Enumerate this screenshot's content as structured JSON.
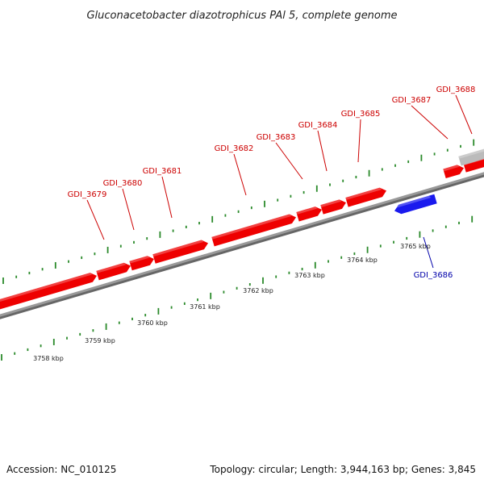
{
  "title": "Gluconacetobacter diazotrophicus PAl 5, complete genome",
  "footer": {
    "accession": "Accession: NC_010125",
    "summary": "Topology: circular; Length: 3,944,163 bp; Genes: 3,845"
  },
  "colors": {
    "forward_gene": "#ee0000",
    "reverse_gene": "#1a1aee",
    "other_gene": "#bbbbbb",
    "forward_label": "#cc0000",
    "reverse_label": "#0000aa",
    "backbone": "#888888",
    "ticks": "#2a8a2a"
  },
  "chart_data": {
    "type": "genome-map",
    "ruler_labels": [
      "3758 kbp",
      "3759 kbp",
      "3760 kbp",
      "3761 kbp",
      "3762 kbp",
      "3763 kbp",
      "3764 kbp",
      "3765 kbp"
    ],
    "genes": [
      {
        "id": "g3679",
        "label": "GDI_3679",
        "strand": "forward"
      },
      {
        "id": "g3680",
        "label": "GDI_3680",
        "strand": "forward"
      },
      {
        "id": "g3681",
        "label": "GDI_3681",
        "strand": "forward"
      },
      {
        "id": "g3682",
        "label": "GDI_3682",
        "strand": "forward"
      },
      {
        "id": "g3683",
        "label": "GDI_3683",
        "strand": "forward"
      },
      {
        "id": "g3684",
        "label": "GDI_3684",
        "strand": "forward"
      },
      {
        "id": "g3685",
        "label": "GDI_3685",
        "strand": "forward"
      },
      {
        "id": "g3686",
        "label": "GDI_3686",
        "strand": "reverse"
      },
      {
        "id": "g3687",
        "label": "GDI_3687",
        "strand": "forward"
      },
      {
        "id": "g3688",
        "label": "GDI_3688",
        "strand": "other"
      }
    ]
  }
}
